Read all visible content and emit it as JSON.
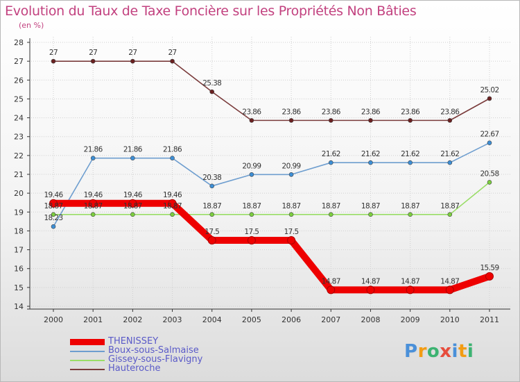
{
  "header": {
    "title": "Evolution du Taux de Taxe Foncière sur les Propriétés Non Bâties",
    "unit": "(en %)"
  },
  "logo": {
    "text": "Proxiti",
    "letters": [
      "P",
      "r",
      "o",
      "x",
      "i",
      "t",
      "i"
    ],
    "colors": [
      "#4a90d9",
      "#f39c12",
      "#3cb371",
      "#e74c3c",
      "#4a90d9",
      "#f39c12",
      "#3cb371"
    ]
  },
  "chart_data": {
    "type": "line",
    "title": "Evolution du Taux de Taxe Foncière sur les Propriétés Non Bâties",
    "ylabel": "(en %)",
    "xlabel": "",
    "x": [
      "2000",
      "2001",
      "2002",
      "2003",
      "2004",
      "2005",
      "2006",
      "2007",
      "2008",
      "2009",
      "2010",
      "2011"
    ],
    "ylim": [
      14,
      28
    ],
    "yticks": [
      "14",
      "15",
      "16",
      "17",
      "18",
      "19",
      "20",
      "21",
      "22",
      "23",
      "24",
      "25",
      "26",
      "27",
      "28"
    ],
    "grid": true,
    "legend_position": "bottom-left",
    "series": [
      {
        "name": "THENISSEY",
        "color": "#ee0000",
        "values": [
          19.46,
          19.46,
          19.46,
          19.46,
          17.5,
          17.5,
          17.5,
          14.87,
          14.87,
          14.87,
          14.87,
          15.59
        ],
        "labels": [
          "19.46",
          "19.46",
          "19.46",
          "19.46",
          "17.5",
          "17.5",
          "17.5",
          "14.87",
          "14.87",
          "14.87",
          "14.87",
          "15.59"
        ]
      },
      {
        "name": "Boux-sous-Salmaise",
        "color": "#6e9ecf",
        "values": [
          18.23,
          21.86,
          21.86,
          21.86,
          20.38,
          20.99,
          20.99,
          21.62,
          21.62,
          21.62,
          21.62,
          22.67
        ],
        "labels": [
          "18.23",
          "21.86",
          "21.86",
          "21.86",
          "20.38",
          "20.99",
          "20.99",
          "21.62",
          "21.62",
          "21.62",
          "21.62",
          "22.67"
        ]
      },
      {
        "name": "Gissey-sous-Flavigny",
        "color": "#99dd66",
        "values": [
          18.87,
          18.87,
          18.87,
          18.87,
          18.87,
          18.87,
          18.87,
          18.87,
          18.87,
          18.87,
          18.87,
          20.58
        ],
        "labels": [
          "18.87",
          "18.87",
          "18.87",
          "18.87",
          "18.87",
          "18.87",
          "18.87",
          "18.87",
          "18.87",
          "18.87",
          "18.87",
          "20.58"
        ]
      },
      {
        "name": "Hauteroche",
        "color": "#7a3b3b",
        "values": [
          27,
          27,
          27,
          27,
          25.38,
          23.86,
          23.86,
          23.86,
          23.86,
          23.86,
          23.86,
          25.02
        ],
        "labels": [
          "27",
          "27",
          "27",
          "27",
          "25.38",
          "23.86",
          "23.86",
          "23.86",
          "23.86",
          "23.86",
          "23.86",
          "25.02"
        ]
      }
    ]
  }
}
